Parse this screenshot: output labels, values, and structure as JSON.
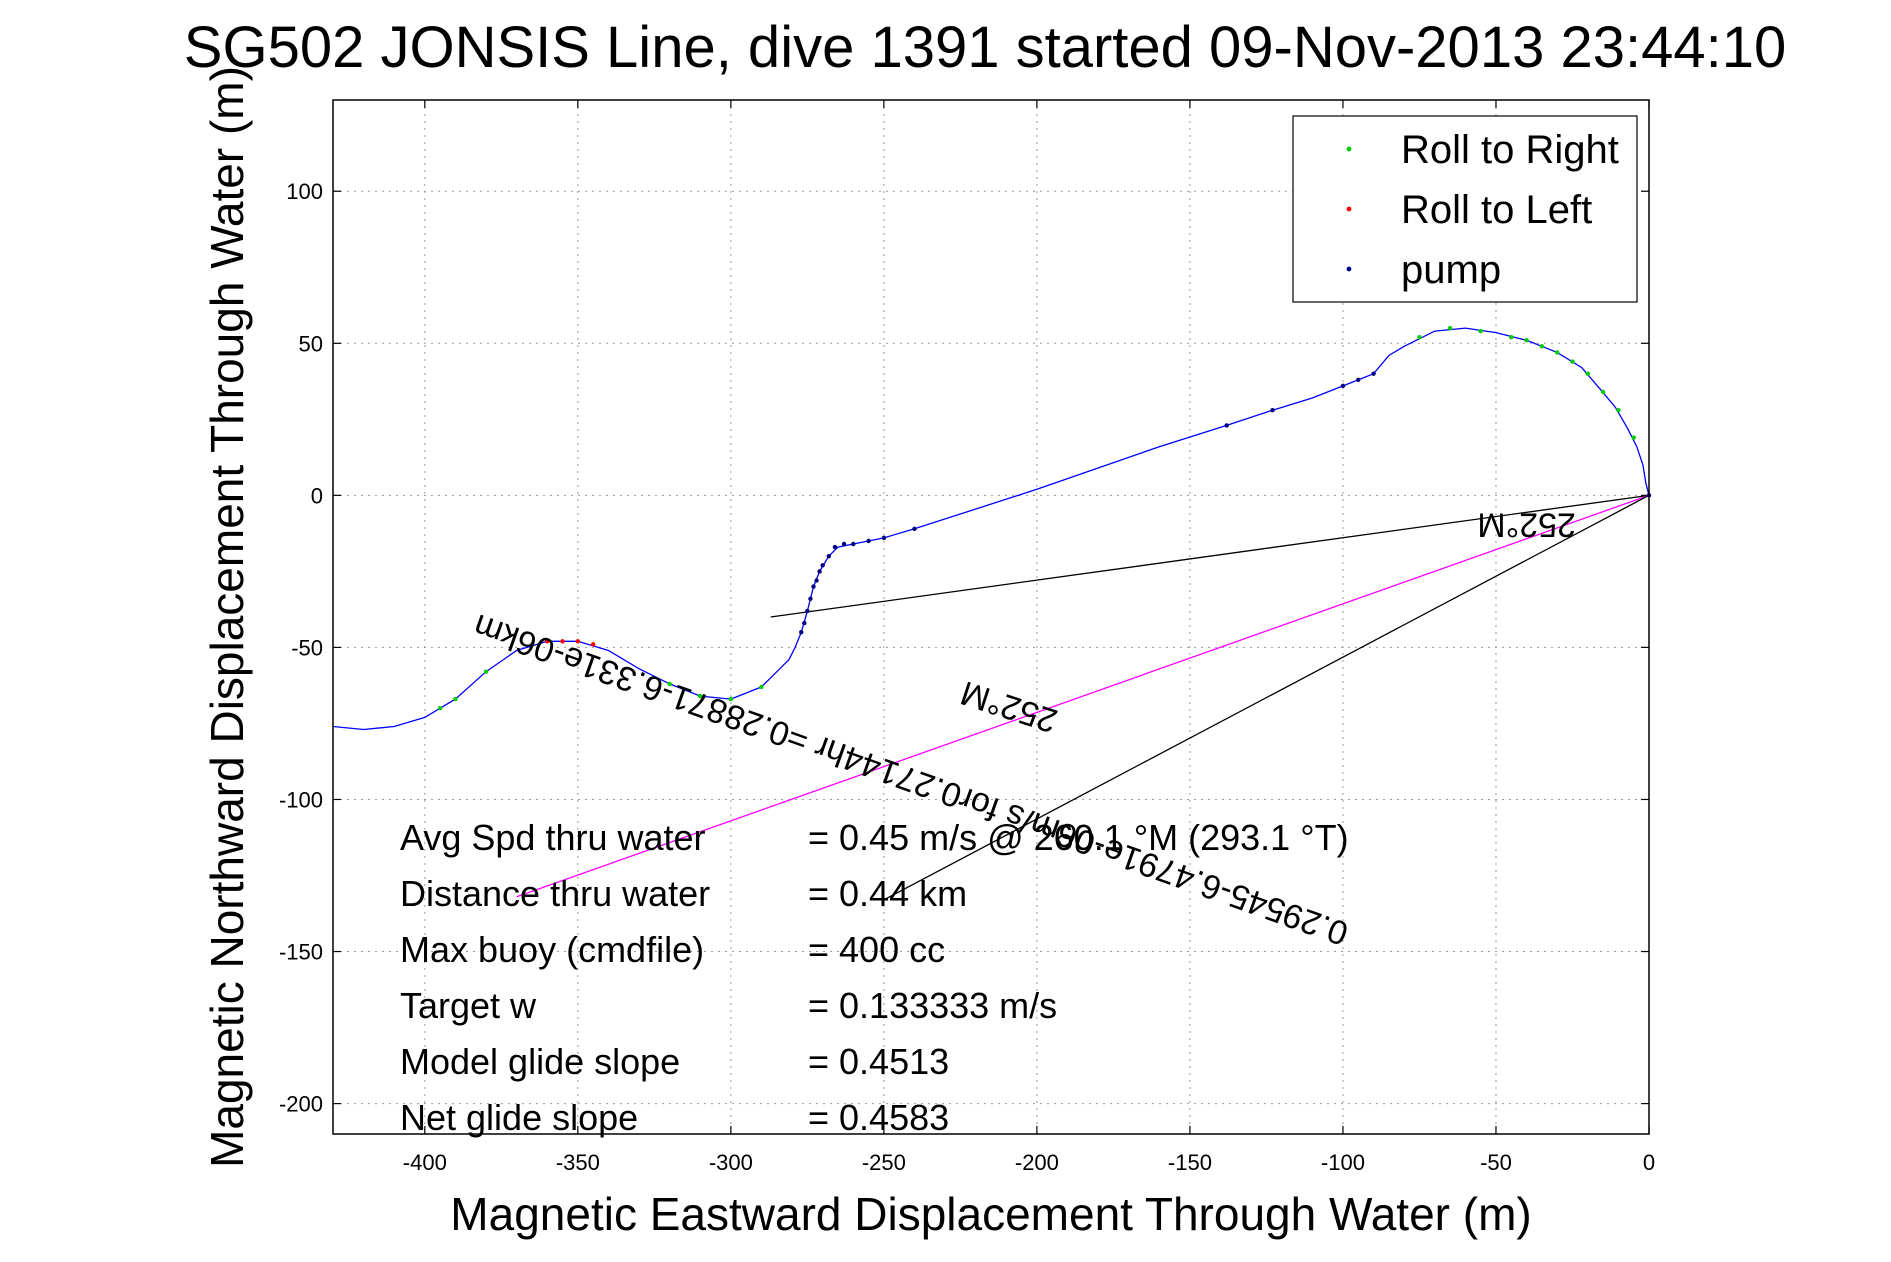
{
  "chart_data": {
    "type": "line",
    "title": "SG502 JONSIS Line, dive 1391 started 09-Nov-2013 23:44:10",
    "xlabel": "Magnetic Eastward Displacement Through Water (m)",
    "ylabel": "Magnetic Northward Displacement Through Water (m)",
    "xlim": [
      -430,
      0
    ],
    "ylim": [
      -210,
      130
    ],
    "xticks": [
      -400,
      -350,
      -300,
      -250,
      -200,
      -150,
      -100,
      -50,
      0
    ],
    "yticks": [
      100,
      50,
      0,
      -50,
      -100,
      -150,
      -200
    ],
    "grid": true,
    "legend_position": "top-right",
    "legend": [
      {
        "label": "Roll to Right",
        "color": "#00cc00"
      },
      {
        "label": "Roll to Left",
        "color": "#ff0000"
      },
      {
        "label": "pump",
        "color": "#000080"
      }
    ],
    "track": {
      "color": "#0000ff",
      "points": [
        [
          0,
          0
        ],
        [
          -1,
          4
        ],
        [
          -2,
          10
        ],
        [
          -4,
          16
        ],
        [
          -7,
          22
        ],
        [
          -11,
          29
        ],
        [
          -16,
          35
        ],
        [
          -22,
          42
        ],
        [
          -30,
          47
        ],
        [
          -40,
          51
        ],
        [
          -50,
          53.5
        ],
        [
          -60,
          55
        ],
        [
          -70,
          54
        ],
        [
          -80,
          49
        ],
        [
          -85,
          46
        ],
        [
          -90,
          40
        ],
        [
          -100,
          36
        ],
        [
          -110,
          32
        ],
        [
          -123,
          28
        ],
        [
          -138,
          23
        ],
        [
          -160,
          16
        ],
        [
          -200,
          2
        ],
        [
          -240,
          -11
        ],
        [
          -250,
          -14
        ],
        [
          -260,
          -16
        ],
        [
          -265,
          -17
        ],
        [
          -268,
          -20
        ],
        [
          -271,
          -25
        ],
        [
          -273,
          -30
        ],
        [
          -275,
          -38
        ],
        [
          -277,
          -45
        ],
        [
          -279,
          -50
        ],
        [
          -281,
          -54
        ],
        [
          -285,
          -58
        ],
        [
          -290,
          -63
        ],
        [
          -300,
          -67
        ],
        [
          -310,
          -66
        ],
        [
          -320,
          -62
        ],
        [
          -330,
          -57
        ],
        [
          -340,
          -51
        ],
        [
          -350,
          -48
        ],
        [
          -360,
          -48
        ],
        [
          -370,
          -51
        ],
        [
          -380,
          -58
        ],
        [
          -390,
          -67
        ],
        [
          -400,
          -73
        ],
        [
          -410,
          -76
        ],
        [
          -420,
          -77
        ],
        [
          -430,
          -76
        ]
      ],
      "roll_right": [
        [
          -5,
          19
        ],
        [
          -10,
          28
        ],
        [
          -15,
          34
        ],
        [
          -20,
          40
        ],
        [
          -25,
          44
        ],
        [
          -30,
          47
        ],
        [
          -35,
          49
        ],
        [
          -40,
          51
        ],
        [
          -45,
          52
        ],
        [
          -55,
          54
        ],
        [
          -65,
          55
        ],
        [
          -75,
          52
        ],
        [
          -300,
          -67
        ],
        [
          -310,
          -66
        ],
        [
          -320,
          -62
        ],
        [
          -290,
          -63
        ],
        [
          -380,
          -58
        ],
        [
          -390,
          -67
        ],
        [
          -395,
          -70
        ]
      ],
      "roll_left": [
        [
          -350,
          -48
        ],
        [
          -355,
          -48
        ],
        [
          -360,
          -48
        ],
        [
          -345,
          -49
        ]
      ],
      "pump": [
        [
          0,
          0
        ],
        [
          -90,
          40
        ],
        [
          -95,
          38
        ],
        [
          -100,
          36
        ],
        [
          -123,
          28
        ],
        [
          -138,
          23
        ],
        [
          -240,
          -11
        ],
        [
          -250,
          -14
        ],
        [
          -255,
          -15
        ],
        [
          -260,
          -16
        ],
        [
          -263,
          -16
        ],
        [
          -266,
          -17
        ],
        [
          -268,
          -20
        ],
        [
          -270,
          -23
        ],
        [
          -271,
          -25
        ],
        [
          -272,
          -28
        ],
        [
          -273,
          -30
        ],
        [
          -274,
          -34
        ],
        [
          -275,
          -38
        ],
        [
          -276,
          -42
        ],
        [
          -277,
          -45
        ]
      ]
    },
    "vectors": [
      {
        "color": "#000000",
        "from": [
          0,
          0
        ],
        "to": [
          -287,
          -40
        ]
      },
      {
        "color": "#ff00ff",
        "from": [
          0,
          0
        ],
        "to": [
          -370,
          -132
        ]
      },
      {
        "color": "#000000",
        "from": [
          0,
          0
        ],
        "to": [
          -250,
          -133
        ]
      }
    ],
    "vector_labels": [
      {
        "text": "252°M",
        "at": [
          -40,
          -6
        ],
        "rotate": 180
      },
      {
        "text": "0.29545-6.4791e-06m/s for0.27144hr =0.28871-6.331e-06km",
        "at": [
          -240,
          -90
        ],
        "rotate": 199.6
      },
      {
        "text": "252°M",
        "at": [
          -208,
          -66
        ],
        "rotate": 198
      }
    ],
    "annotations": [
      {
        "label": "Avg Spd thru water",
        "value": "=  0.45 m/s @ 260.1 °M (293.1 °T)"
      },
      {
        "label": "Distance thru water",
        "value": "=  0.44 km"
      },
      {
        "label": "Max buoy (cmdfile)",
        "value": "= 400 cc"
      },
      {
        "label": "Target w",
        "value": "= 0.133333 m/s"
      },
      {
        "label": "Model glide slope",
        "value": "= 0.4513"
      },
      {
        "label": "Net glide slope",
        "value": "= 0.4583"
      }
    ]
  }
}
